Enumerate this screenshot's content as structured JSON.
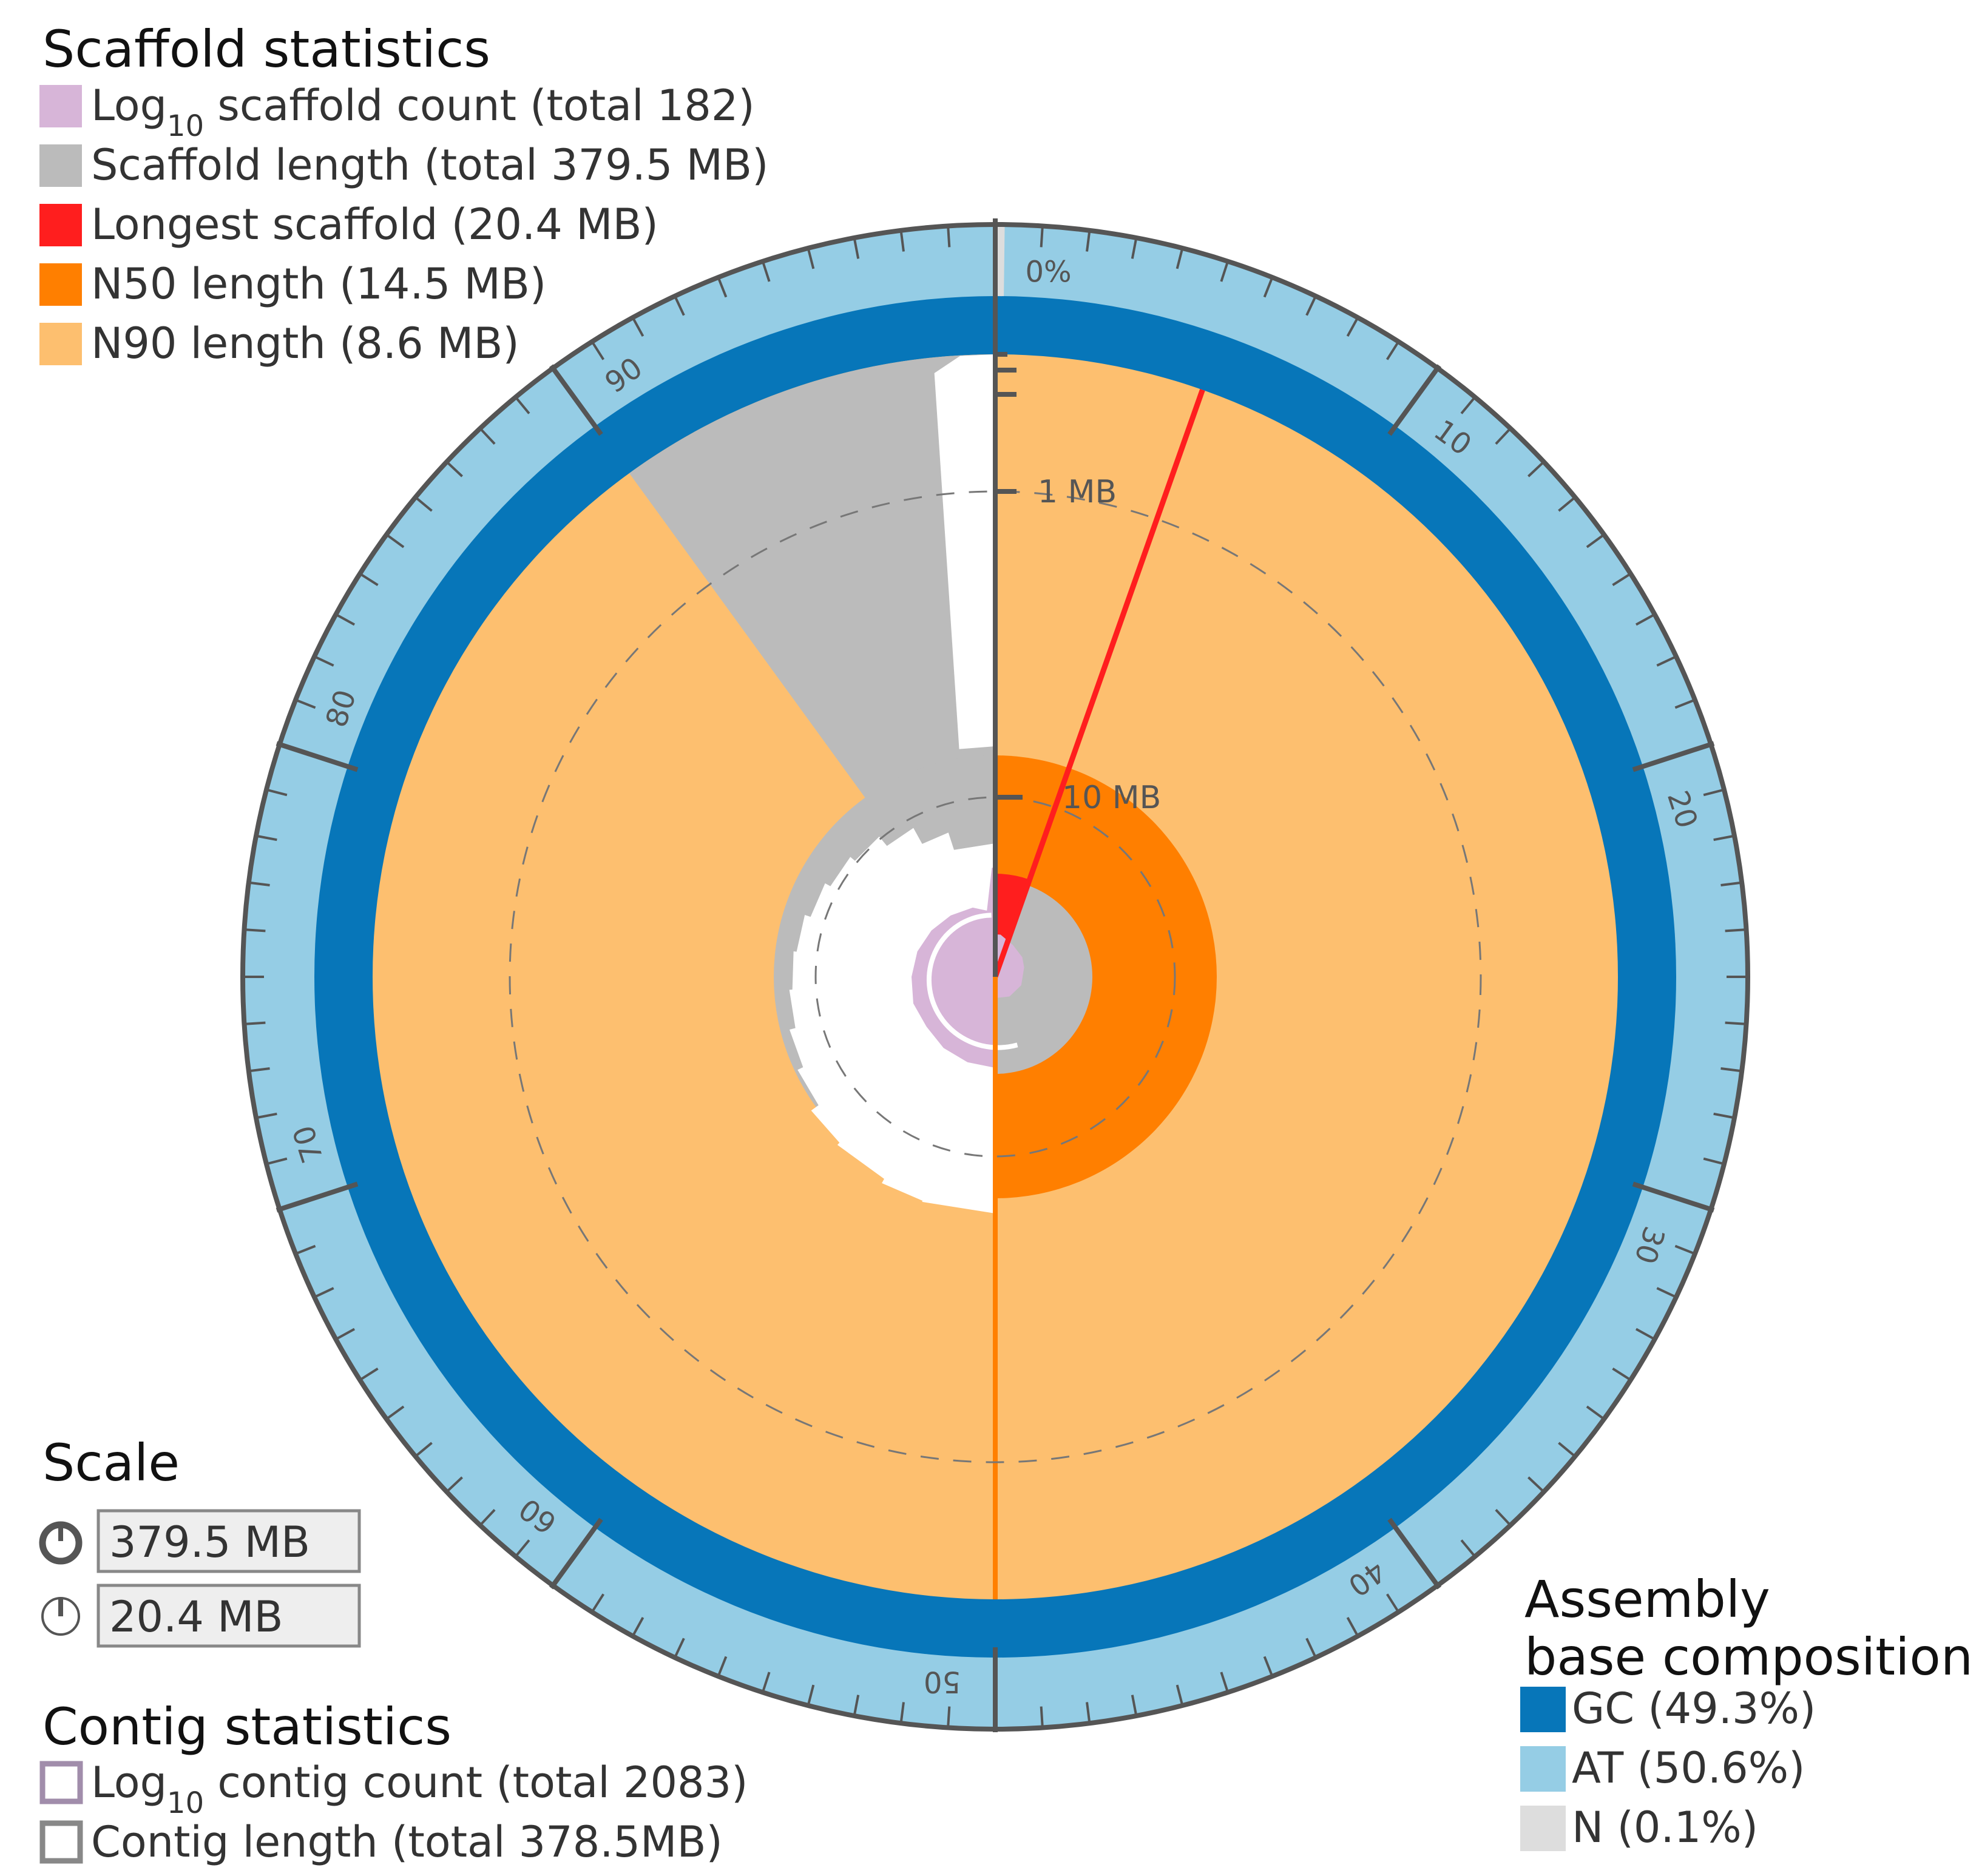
{
  "chart_data": {
    "type": "snail",
    "title": "Scaffold statistics",
    "scaffold_legend": [
      {
        "prefix": "Log",
        "sub": "10",
        "suffix": " scaffold count (total 182)",
        "color": "#d7b5d8"
      },
      {
        "text": "Scaffold length (total 379.5  MB)",
        "color": "#bbbbbb"
      },
      {
        "text": "Longest scaffold (20.4 MB)",
        "color": "#ff1e1e"
      },
      {
        "text": "N50 length (14.5 MB)",
        "color": "#ff7f00"
      },
      {
        "text": "N90 length (8.6 MB)",
        "color": "#fdbf6f"
      }
    ],
    "total_scaffold_mb": 379.5,
    "scaffold_count": 182,
    "longest_scaffold_mb": 20.4,
    "n50_mb": 14.5,
    "n90_mb": 8.6,
    "n50_percent": 50,
    "n90_percent": 90,
    "scaffold_curve_length_percent": [
      0,
      85,
      88,
      90,
      92,
      94,
      95,
      96,
      97,
      98,
      99,
      99.5,
      100
    ],
    "radius_scale_labels": [
      "1 MB",
      "10 MB"
    ],
    "percent_ticks": [
      "0%",
      "10",
      "20",
      "30",
      "40",
      "50",
      "60",
      "70",
      "80",
      "90"
    ],
    "scale": {
      "title": "Scale",
      "circumference_label": "379.5 MB",
      "radius_label": "20.4 MB"
    },
    "contig": {
      "title": "Contig statistics",
      "legend": [
        {
          "prefix": "Log",
          "sub": "10",
          "suffix": "  contig count (total 2083)",
          "color": "#a18dab"
        },
        {
          "text": "Contig length (total 378.5MB)",
          "color": "#888888"
        }
      ],
      "count": 2083,
      "total_mb": 378.5
    },
    "composition": {
      "title_line1": "Assembly",
      "title_line2": "base composition",
      "items": [
        {
          "text": "GC (49.3%)",
          "value": 49.3,
          "color": "#0776b9"
        },
        {
          "text": "AT (50.6%)",
          "value": 50.6,
          "color": "#95cde5"
        },
        {
          "text": "N (0.1%)",
          "value": 0.1,
          "color": "#dddddd"
        }
      ]
    }
  }
}
